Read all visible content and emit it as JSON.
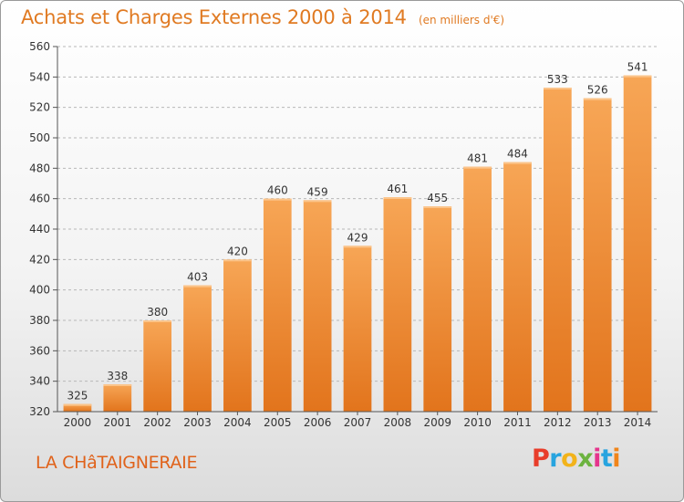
{
  "chart_data": {
    "type": "bar",
    "title": "Achats et Charges Externes 2000 à 2014",
    "subtitle": "(en milliers d'€)",
    "categories": [
      "2000",
      "2001",
      "2002",
      "2003",
      "2004",
      "2005",
      "2006",
      "2007",
      "2008",
      "2009",
      "2010",
      "2011",
      "2012",
      "2013",
      "2014"
    ],
    "values": [
      325,
      338,
      380,
      403,
      420,
      460,
      459,
      429,
      461,
      455,
      481,
      484,
      533,
      526,
      541
    ],
    "ylim": [
      320,
      560
    ],
    "yticks": [
      320,
      340,
      360,
      380,
      400,
      420,
      440,
      460,
      480,
      500,
      520,
      540,
      560
    ],
    "grid": true,
    "bar_color": "#f0882a",
    "bar_highlight": "#f7a85a"
  },
  "commune": "LA CHâTAIGNERAIE",
  "logo": {
    "text": "Proxiti",
    "letters": [
      "P",
      "r",
      "o",
      "x",
      "i",
      "t",
      "i"
    ]
  }
}
